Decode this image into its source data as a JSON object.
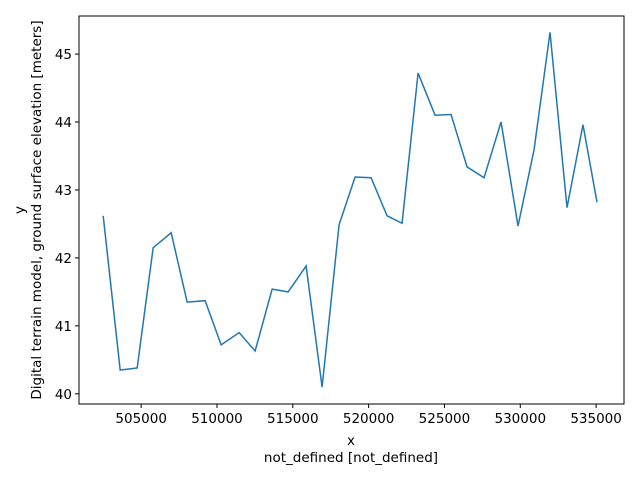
{
  "chart_data": {
    "type": "line",
    "xlabel": [
      "x",
      "not_defined [not_defined]"
    ],
    "ylabel": [
      "y",
      "Digital terrain model, ground surface elevation [meters]"
    ],
    "x": [
      502495,
      503616,
      504736,
      505791,
      506978,
      508032,
      509219,
      510274,
      511460,
      512515,
      513636,
      514690,
      515877,
      516932,
      518052,
      519107,
      520162,
      521217,
      522205,
      523260,
      524381,
      525435,
      526490,
      527611,
      528731,
      529852,
      530907,
      531961,
      533082,
      534136,
      535059
    ],
    "series": [
      {
        "color": "#1f77b4",
        "values": [
          42.62,
          40.35,
          40.38,
          42.15,
          42.37,
          41.35,
          41.37,
          40.72,
          40.9,
          40.63,
          41.54,
          41.5,
          41.88,
          40.1,
          42.49,
          43.19,
          43.18,
          42.62,
          42.51,
          44.72,
          44.1,
          44.11,
          43.34,
          43.18,
          44.0,
          42.47,
          43.59,
          45.32,
          42.74,
          43.96,
          42.82
        ]
      }
    ],
    "xlim": [
      500900,
      536840
    ],
    "ylim": [
      39.85,
      45.56
    ],
    "xticks": [
      505000,
      510000,
      515000,
      520000,
      525000,
      530000,
      535000
    ],
    "yticks": [
      40,
      41,
      42,
      43,
      44,
      45
    ]
  }
}
